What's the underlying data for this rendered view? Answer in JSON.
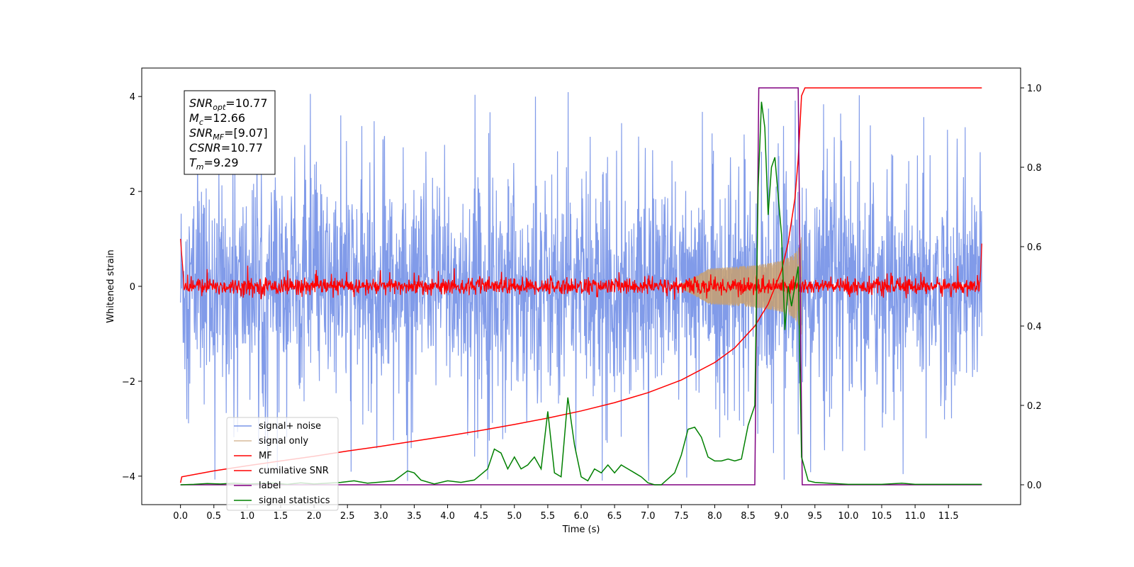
{
  "chart_data": {
    "type": "line",
    "xlabel": "Time (s)",
    "ylabel": "Whitened strain",
    "xlim": [
      -0.58,
      12.58
    ],
    "ylim": [
      -4.6,
      4.6
    ],
    "ylim_right": [
      -0.05,
      1.05
    ],
    "x_ticks": [
      0.0,
      0.5,
      1.0,
      1.5,
      2.0,
      2.5,
      3.0,
      3.5,
      4.0,
      4.5,
      5.0,
      5.5,
      6.0,
      6.5,
      7.0,
      7.5,
      8.0,
      8.5,
      9.0,
      9.5,
      10.0,
      10.5,
      11.0,
      11.5
    ],
    "x_tick_labels": [
      "0.0",
      "0.5",
      "1.0",
      "1.5",
      "2.0",
      "2.5",
      "3.0",
      "3.5",
      "4.0",
      "4.5",
      "5.0",
      "5.5",
      "6.0",
      "6.5",
      "7.0",
      "7.5",
      "8.0",
      "8.5",
      "9.0",
      "9.5",
      "10.0",
      "10.5",
      "11.0",
      "11.5"
    ],
    "y_ticks": [
      -4,
      -2,
      0,
      2,
      4
    ],
    "y_tick_labels": [
      "−4",
      "−2",
      "0",
      "2",
      "4"
    ],
    "y_ticks_right": [
      0.0,
      0.2,
      0.4,
      0.6,
      0.8,
      1.0
    ],
    "y_tick_labels_right": [
      "0.0",
      "0.2",
      "0.4",
      "0.6",
      "0.8",
      "1.0"
    ],
    "legend_position": "lower-left",
    "colors": {
      "signal_noise": "#7a96e8",
      "signal_only": "#c8a070",
      "mf": "#ff0000",
      "cumulative_snr": "#ff0000",
      "label": "#800080",
      "signal_statistics": "#008000"
    },
    "annotation": {
      "lines": [
        {
          "base": "SNR",
          "sub": "opt",
          "value": "=10.77"
        },
        {
          "base": "M",
          "sub": "c",
          "value": "=12.66"
        },
        {
          "base": "SNR",
          "sub": "MF",
          "value": "=[9.07]"
        },
        {
          "base": "CSNR",
          "sub": "",
          "value": "=10.77"
        },
        {
          "base": "T",
          "sub": "m",
          "value": "=9.29"
        }
      ]
    },
    "series": [
      {
        "name": "signal+ noise",
        "key": "signal_noise",
        "axis": "left",
        "style": "noise",
        "x_range": [
          0.0,
          12.0
        ],
        "amplitude_typical": 2.0,
        "amplitude_peak": 4.1
      },
      {
        "name": "signal only",
        "key": "signal_only",
        "axis": "left",
        "style": "chirp",
        "x_range": [
          7.5,
          9.3
        ],
        "amplitude_end": 1.1
      },
      {
        "name": "MF",
        "key": "mf",
        "axis": "left",
        "style": "mf",
        "x_range": [
          0.0,
          12.0
        ],
        "start_value": 1.0,
        "end_value": 0.9
      },
      {
        "name": "cumilative SNR",
        "key": "cumulative_snr",
        "axis": "right",
        "x": [
          0.0,
          0.02,
          0.5,
          1.0,
          1.5,
          2.0,
          2.5,
          3.0,
          3.5,
          4.0,
          4.5,
          5.0,
          5.5,
          6.0,
          6.5,
          7.0,
          7.5,
          8.0,
          8.3,
          8.6,
          8.8,
          9.0,
          9.1,
          9.2,
          9.25,
          9.3,
          9.35,
          9.5,
          10.0,
          11.0,
          12.0
        ],
        "y": [
          0.005,
          0.02,
          0.035,
          0.048,
          0.06,
          0.072,
          0.085,
          0.097,
          0.11,
          0.123,
          0.137,
          0.152,
          0.168,
          0.186,
          0.207,
          0.232,
          0.264,
          0.308,
          0.345,
          0.4,
          0.455,
          0.54,
          0.61,
          0.72,
          0.82,
          0.98,
          1.0,
          1.0,
          1.0,
          1.0,
          1.0
        ]
      },
      {
        "name": "label",
        "key": "label",
        "axis": "right",
        "x": [
          0.0,
          8.6,
          8.66,
          9.25,
          9.31,
          12.0
        ],
        "y": [
          0.0,
          0.0,
          1.0,
          1.0,
          0.0,
          0.0
        ]
      },
      {
        "name": "signal statistics",
        "key": "signal_statistics",
        "axis": "right",
        "x": [
          0.0,
          0.2,
          0.4,
          0.6,
          0.8,
          1.0,
          1.2,
          1.4,
          1.6,
          1.8,
          2.0,
          2.2,
          2.4,
          2.6,
          2.8,
          3.0,
          3.2,
          3.4,
          3.5,
          3.6,
          3.8,
          4.0,
          4.2,
          4.4,
          4.6,
          4.7,
          4.8,
          4.9,
          5.0,
          5.1,
          5.2,
          5.3,
          5.4,
          5.5,
          5.6,
          5.7,
          5.8,
          5.9,
          6.0,
          6.1,
          6.2,
          6.3,
          6.4,
          6.5,
          6.6,
          6.7,
          6.8,
          6.9,
          7.0,
          7.1,
          7.2,
          7.4,
          7.5,
          7.6,
          7.7,
          7.8,
          7.9,
          8.0,
          8.1,
          8.2,
          8.3,
          8.4,
          8.5,
          8.6,
          8.65,
          8.7,
          8.75,
          8.8,
          8.85,
          8.9,
          9.0,
          9.05,
          9.1,
          9.15,
          9.25,
          9.3,
          9.4,
          9.5,
          10.0,
          10.5,
          10.8,
          11.0,
          11.5,
          12.0
        ],
        "y": [
          0.0,
          0.001,
          0.003,
          0.002,
          0.004,
          0.002,
          0.003,
          0.004,
          0.001,
          0.005,
          0.002,
          0.004,
          0.006,
          0.01,
          0.004,
          0.007,
          0.01,
          0.035,
          0.03,
          0.012,
          0.002,
          0.01,
          0.006,
          0.012,
          0.04,
          0.09,
          0.08,
          0.04,
          0.07,
          0.04,
          0.05,
          0.07,
          0.04,
          0.185,
          0.03,
          0.02,
          0.22,
          0.1,
          0.02,
          0.01,
          0.04,
          0.03,
          0.05,
          0.03,
          0.05,
          0.04,
          0.03,
          0.02,
          0.005,
          0.0,
          0.0,
          0.03,
          0.075,
          0.14,
          0.145,
          0.12,
          0.07,
          0.06,
          0.06,
          0.065,
          0.06,
          0.065,
          0.15,
          0.2,
          0.75,
          0.965,
          0.9,
          0.68,
          0.8,
          0.825,
          0.63,
          0.39,
          0.5,
          0.45,
          0.55,
          0.07,
          0.01,
          0.006,
          0.001,
          0.001,
          0.004,
          0.001,
          0.001,
          0.001
        ]
      }
    ]
  }
}
